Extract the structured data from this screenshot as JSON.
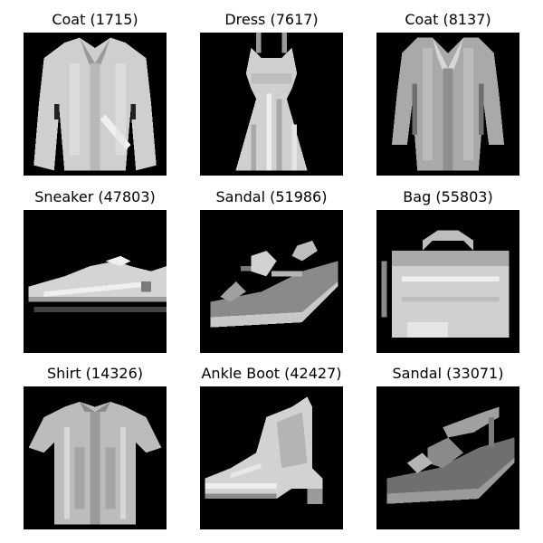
{
  "grid": {
    "cells": [
      {
        "title": "Coat (1715)",
        "icon": "coat-thumbnail"
      },
      {
        "title": "Dress (7617)",
        "icon": "dress-thumbnail"
      },
      {
        "title": "Coat (8137)",
        "icon": "long-coat-thumbnail"
      },
      {
        "title": "Sneaker (47803)",
        "icon": "sneaker-thumbnail"
      },
      {
        "title": "Sandal (51986)",
        "icon": "sandal-thumbnail"
      },
      {
        "title": "Bag (55803)",
        "icon": "bag-thumbnail"
      },
      {
        "title": "Shirt (14326)",
        "icon": "shirt-thumbnail"
      },
      {
        "title": "Ankle Boot (42427)",
        "icon": "ankle-boot-thumbnail"
      },
      {
        "title": "Sandal (33071)",
        "icon": "wedge-sandal-thumbnail"
      }
    ]
  },
  "colors": {
    "background": "#ffffff",
    "image_background": "#000000",
    "garment_light": "#d8d8d8",
    "garment_mid": "#a9a9a9",
    "garment_dark": "#6f6f6f"
  }
}
